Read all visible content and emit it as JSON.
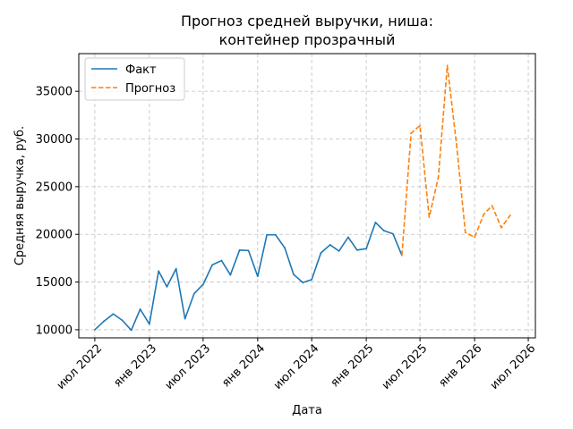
{
  "chart_data": {
    "type": "line",
    "title_lines": [
      "Прогноз средней выручки, ниша:",
      "контейнер прозрачный"
    ],
    "xlabel": "Дата",
    "ylabel": "Средняя выручка, руб.",
    "x_ticks": [
      {
        "date": "2022-07-01",
        "label": "июл 2022"
      },
      {
        "date": "2023-01-01",
        "label": "янв 2023"
      },
      {
        "date": "2023-07-01",
        "label": "июл 2023"
      },
      {
        "date": "2024-01-01",
        "label": "янв 2024"
      },
      {
        "date": "2024-07-01",
        "label": "июл 2024"
      },
      {
        "date": "2025-01-01",
        "label": "янв 2025"
      },
      {
        "date": "2025-07-01",
        "label": "июл 2025"
      },
      {
        "date": "2026-01-01",
        "label": "янв 2026"
      },
      {
        "date": "2026-07-01",
        "label": "июл 2026"
      }
    ],
    "y_ticks": [
      10000,
      15000,
      20000,
      25000,
      30000,
      35000
    ],
    "xlim": [
      "2022-05-08",
      "2026-07-25"
    ],
    "ylim": [
      9150,
      38950
    ],
    "grid": true,
    "legend_position": "top-left",
    "series": [
      {
        "name": "Факт",
        "color": "#1f77b4",
        "style": "solid",
        "points": [
          {
            "x": "2022-07-01",
            "y": 10000
          },
          {
            "x": "2022-08-01",
            "y": 10900
          },
          {
            "x": "2022-09-01",
            "y": 11650
          },
          {
            "x": "2022-10-01",
            "y": 11000
          },
          {
            "x": "2022-11-01",
            "y": 9950
          },
          {
            "x": "2022-12-01",
            "y": 12150
          },
          {
            "x": "2023-01-01",
            "y": 10600
          },
          {
            "x": "2023-02-01",
            "y": 16150
          },
          {
            "x": "2023-03-01",
            "y": 14500
          },
          {
            "x": "2023-04-01",
            "y": 16400
          },
          {
            "x": "2023-05-01",
            "y": 11150
          },
          {
            "x": "2023-06-01",
            "y": 13800
          },
          {
            "x": "2023-07-01",
            "y": 14750
          },
          {
            "x": "2023-08-01",
            "y": 16800
          },
          {
            "x": "2023-09-01",
            "y": 17250
          },
          {
            "x": "2023-10-01",
            "y": 15750
          },
          {
            "x": "2023-11-01",
            "y": 18350
          },
          {
            "x": "2023-12-01",
            "y": 18300
          },
          {
            "x": "2024-01-01",
            "y": 15600
          },
          {
            "x": "2024-02-01",
            "y": 19950
          },
          {
            "x": "2024-03-01",
            "y": 19950
          },
          {
            "x": "2024-04-01",
            "y": 18600
          },
          {
            "x": "2024-05-01",
            "y": 15800
          },
          {
            "x": "2024-06-01",
            "y": 14950
          },
          {
            "x": "2024-07-01",
            "y": 15250
          },
          {
            "x": "2024-08-01",
            "y": 18050
          },
          {
            "x": "2024-09-01",
            "y": 18900
          },
          {
            "x": "2024-10-01",
            "y": 18250
          },
          {
            "x": "2024-11-01",
            "y": 19700
          },
          {
            "x": "2024-12-01",
            "y": 18350
          },
          {
            "x": "2025-01-01",
            "y": 18500
          },
          {
            "x": "2025-02-01",
            "y": 21250
          },
          {
            "x": "2025-03-01",
            "y": 20400
          },
          {
            "x": "2025-04-01",
            "y": 20050
          },
          {
            "x": "2025-05-01",
            "y": 17800
          }
        ]
      },
      {
        "name": "Прогноз",
        "color": "#ff7f0e",
        "style": "dashed",
        "points": [
          {
            "x": "2025-05-01",
            "y": 17800
          },
          {
            "x": "2025-06-01",
            "y": 30600
          },
          {
            "x": "2025-07-01",
            "y": 31400
          },
          {
            "x": "2025-08-01",
            "y": 21800
          },
          {
            "x": "2025-09-01",
            "y": 26000
          },
          {
            "x": "2025-10-01",
            "y": 37700
          },
          {
            "x": "2025-11-01",
            "y": 29500
          },
          {
            "x": "2025-12-01",
            "y": 20200
          },
          {
            "x": "2026-01-01",
            "y": 19700
          },
          {
            "x": "2026-02-01",
            "y": 22100
          },
          {
            "x": "2026-03-01",
            "y": 23000
          },
          {
            "x": "2026-04-01",
            "y": 20700
          },
          {
            "x": "2026-05-01",
            "y": 22000
          }
        ]
      }
    ]
  }
}
